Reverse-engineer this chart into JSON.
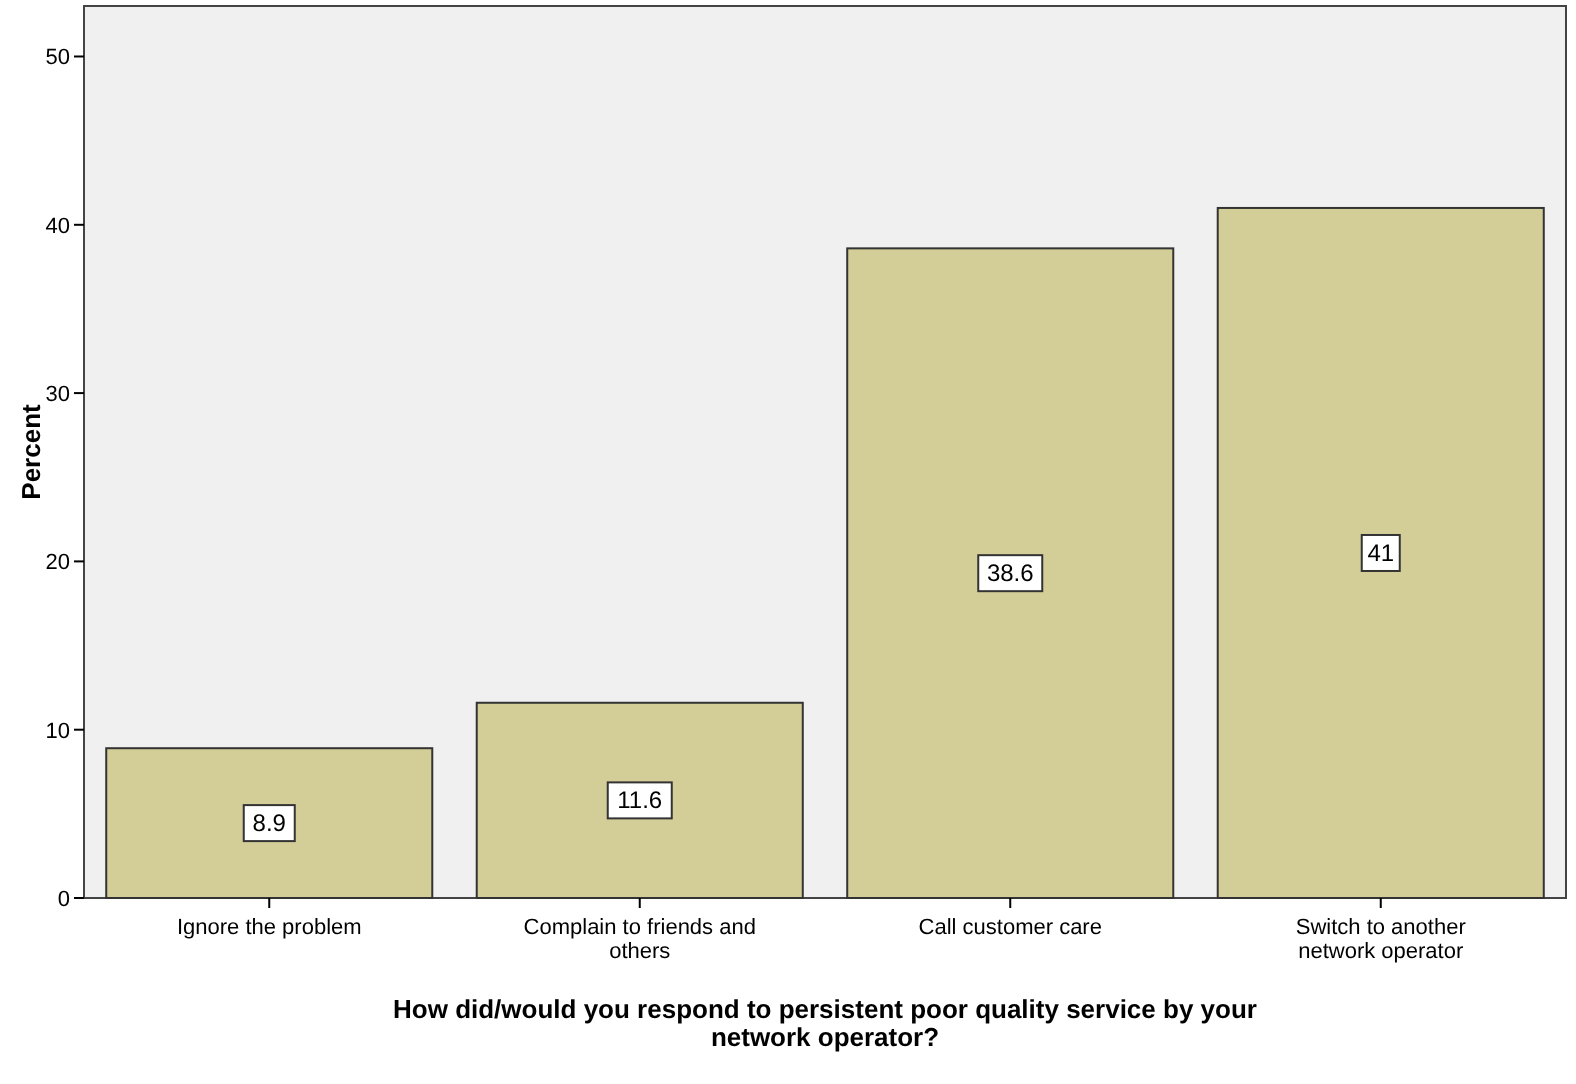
{
  "chart_data": {
    "type": "bar",
    "xlabel": "How did/would you respond to persistent poor quality service by your network operator?",
    "ylabel": "Percent",
    "categories": [
      "Ignore the problem",
      "Complain to friends and others",
      "Call customer care",
      "Switch to another network operator"
    ],
    "values": [
      8.9,
      11.6,
      38.6,
      41
    ],
    "color": "#d3ce98",
    "ylim": [
      0,
      53
    ],
    "yticks": [
      0,
      10,
      20,
      30,
      40,
      50
    ],
    "grid": false,
    "data_labels": true
  }
}
